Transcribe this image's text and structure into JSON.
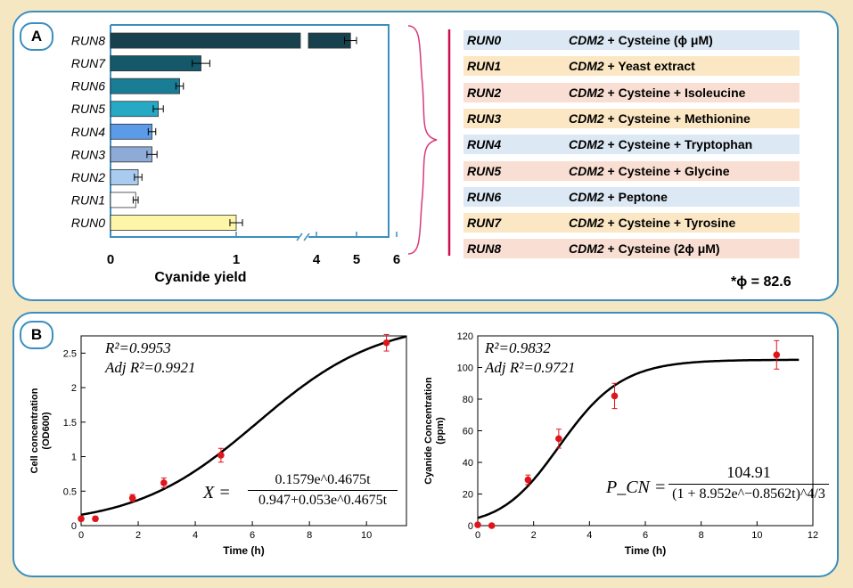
{
  "panelA": {
    "label": "A",
    "xlabel": "Cyanide yield",
    "phi_note": "*ϕ = 82.6",
    "runs": [
      {
        "name": "RUN0",
        "prefix": "CDM2",
        "rest": " + Cysteine (ϕ μM)",
        "bg": "#dce8f4"
      },
      {
        "name": "RUN1",
        "prefix": "CDM2",
        "rest": " + Yeast extract",
        "bg": "#fbe7c4"
      },
      {
        "name": "RUN2",
        "prefix": "CDM2",
        "rest": " + Cysteine + Isoleucine",
        "bg": "#f9dfd3"
      },
      {
        "name": "RUN3",
        "prefix": "CDM2",
        "rest": " + Cysteine + Methionine",
        "bg": "#fbe7c4"
      },
      {
        "name": "RUN4",
        "prefix": "CDM2",
        "rest": " + Cysteine + Tryptophan",
        "bg": "#dce8f4"
      },
      {
        "name": "RUN5",
        "prefix": "CDM2",
        "rest": " + Cysteine + Glycine",
        "bg": "#f9dfd3"
      },
      {
        "name": "RUN6",
        "prefix": "CDM2",
        "rest": " + Peptone",
        "bg": "#dce8f4"
      },
      {
        "name": "RUN7",
        "prefix": "CDM2",
        "rest": " + Cysteine + Tyrosine",
        "bg": "#fbe7c4"
      },
      {
        "name": "RUN8",
        "prefix": "CDM2",
        "rest": " + Cysteine (2ϕ μM)",
        "bg": "#f9dfd3"
      }
    ]
  },
  "panelB": {
    "label": "B",
    "left_fit": {
      "r2": "R²=0.9953",
      "adj_r2": "Adj R²=0.9921",
      "eq_lhs": "X =",
      "eq_num": "0.1579e^0.4675t",
      "eq_den": "0.947+0.053e^0.4675t"
    },
    "right_fit": {
      "r2": "R²=0.9832",
      "adj_r2": "Adj R²=0.9721",
      "eq_lhs": "P_CN =",
      "eq_num": "104.91",
      "eq_den": "(1 + 8.952e^−0.8562t)^4/3"
    }
  },
  "chart_data": [
    {
      "type": "bar",
      "orientation": "horizontal",
      "title": "",
      "xlabel": "Cyanide yield",
      "ylabel": "",
      "categories": [
        "RUN0",
        "RUN1",
        "RUN2",
        "RUN3",
        "RUN4",
        "RUN5",
        "RUN6",
        "RUN7",
        "RUN8"
      ],
      "values": [
        1.0,
        0.2,
        0.22,
        0.33,
        0.33,
        0.38,
        0.55,
        0.72,
        4.85
      ],
      "errors": [
        0.05,
        0.02,
        0.03,
        0.04,
        0.03,
        0.04,
        0.03,
        0.07,
        0.15
      ],
      "colors": [
        "#fdf6a8",
        "#ffffff",
        "#a9cbef",
        "#8eaad6",
        "#5b9be8",
        "#27a8c4",
        "#1a7d96",
        "#14586a",
        "#17414d"
      ],
      "x_ticks": [
        "0",
        "1",
        "4",
        "5",
        "6"
      ],
      "axis_break": [
        1.55,
        3.8
      ],
      "xlim": [
        0,
        6
      ]
    },
    {
      "type": "scatter",
      "title": "",
      "xlabel": "Time (h)",
      "ylabel": "Cell concentration (OD600)",
      "xlim": [
        0,
        11.4
      ],
      "ylim": [
        0,
        2.75
      ],
      "x_ticks": [
        "0",
        "2",
        "4",
        "6",
        "8",
        "10"
      ],
      "y_ticks": [
        "0",
        "0.5",
        "1",
        "1.5",
        "2",
        "2.5"
      ],
      "x": [
        0,
        0.5,
        1.8,
        2.9,
        4.9,
        10.7
      ],
      "y": [
        0.1,
        0.1,
        0.4,
        0.62,
        1.02,
        2.65
      ],
      "y_error": [
        0.03,
        0.03,
        0.05,
        0.07,
        0.1,
        0.12
      ],
      "fit": {
        "model": "0.1579*exp(0.4675t)/(0.947+0.053*exp(0.4675t))"
      }
    },
    {
      "type": "scatter",
      "title": "",
      "xlabel": "Time (h)",
      "ylabel": "Cyanide Concentration (ppm)",
      "xlim": [
        0,
        12
      ],
      "ylim": [
        0,
        120
      ],
      "x_ticks": [
        "0",
        "2",
        "4",
        "6",
        "8",
        "10",
        "12"
      ],
      "y_ticks": [
        "0",
        "20",
        "40",
        "60",
        "80",
        "100",
        "120"
      ],
      "x": [
        0,
        0.5,
        1.8,
        2.9,
        4.9,
        10.7
      ],
      "y": [
        0.5,
        0,
        29,
        55,
        82,
        108
      ],
      "y_error": [
        1,
        1,
        3,
        6,
        8,
        9
      ],
      "fit": {
        "model": "104.91/(1+8.952*exp(-0.8562t))^(4/3)"
      }
    }
  ],
  "colors": {
    "frame_border": "#3a8fc0",
    "background": "#f6e7c3",
    "marker": "#e0141b",
    "bracket": "#d83a7a",
    "divider": "#cc0f4f"
  }
}
